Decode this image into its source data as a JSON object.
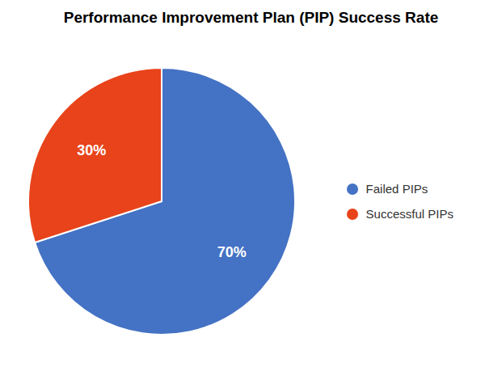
{
  "chart_data": {
    "type": "pie",
    "title": "Performance Improvement Plan (PIP) Success Rate",
    "categories": [
      "Failed PIPs",
      "Successful PIPs"
    ],
    "values": [
      70,
      30
    ],
    "value_labels": [
      "70%",
      "30%"
    ],
    "colors": [
      "#4472C4",
      "#E8431A"
    ],
    "data_labels": true,
    "legend": "right"
  }
}
